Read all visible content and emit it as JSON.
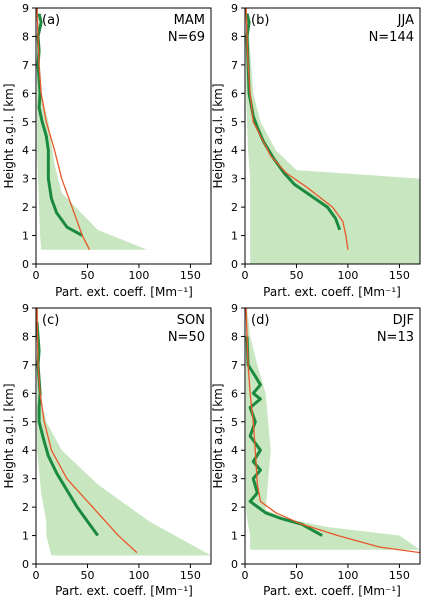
{
  "chart_data": [
    {
      "type": "line",
      "panel": "(a)",
      "season": "MAM",
      "count": "N=69",
      "xlabel": "Part. ext. coeff. [Mm⁻¹]",
      "ylabel": "Height a.g.l. [km]",
      "xlim": [
        0,
        170
      ],
      "ylim": [
        0,
        9
      ],
      "xticks": [
        0,
        50,
        100,
        150
      ],
      "yticks": [
        0,
        1,
        2,
        3,
        4,
        5,
        6,
        7,
        8,
        9
      ],
      "band_lower": [
        [
          5,
          0.5
        ],
        [
          4,
          1
        ],
        [
          3,
          2
        ],
        [
          2,
          3
        ],
        [
          1,
          4
        ],
        [
          1,
          5
        ],
        [
          1,
          9
        ]
      ],
      "band_upper": [
        [
          108,
          0.5
        ],
        [
          60,
          1.2
        ],
        [
          25,
          2.5
        ],
        [
          18,
          3.5
        ],
        [
          12,
          5
        ],
        [
          5,
          6
        ],
        [
          2,
          9
        ]
      ],
      "mean_profile": [
        [
          52,
          0.5
        ],
        [
          45,
          1
        ],
        [
          35,
          2
        ],
        [
          25,
          3
        ],
        [
          18,
          4
        ],
        [
          10,
          5
        ],
        [
          5,
          6
        ],
        [
          3,
          7
        ],
        [
          2,
          8
        ],
        [
          1,
          9
        ]
      ],
      "median_profile": [
        [
          45,
          1
        ],
        [
          30,
          1.3
        ],
        [
          20,
          1.8
        ],
        [
          15,
          2.3
        ],
        [
          12,
          3
        ],
        [
          12,
          3.5
        ],
        [
          12,
          4
        ],
        [
          10,
          4.5
        ],
        [
          6,
          5
        ],
        [
          3,
          5.5
        ],
        [
          4,
          6
        ],
        [
          2,
          7
        ],
        [
          3,
          7.5
        ],
        [
          2,
          8
        ],
        [
          5,
          8.5
        ],
        [
          3,
          8.8
        ]
      ]
    },
    {
      "type": "line",
      "panel": "(b)",
      "season": "JJA",
      "count": "N=144",
      "xlabel": "Part. ext. coeff. [Mm⁻¹]",
      "ylabel": "Height a.g.l. [km]",
      "xlim": [
        0,
        170
      ],
      "ylim": [
        0,
        9
      ],
      "xticks": [
        0,
        50,
        100,
        150
      ],
      "yticks": [
        0,
        1,
        2,
        3,
        4,
        5,
        6,
        7,
        8,
        9
      ],
      "band_lower": [
        [
          5,
          0
        ],
        [
          5,
          1
        ],
        [
          5,
          2
        ],
        [
          5,
          3
        ],
        [
          3,
          4
        ],
        [
          2,
          5
        ],
        [
          1,
          6
        ],
        [
          1,
          9
        ]
      ],
      "band_upper": [
        [
          170,
          0
        ],
        [
          170,
          2.5
        ],
        [
          170,
          3
        ],
        [
          50,
          3.3
        ],
        [
          30,
          4
        ],
        [
          15,
          5
        ],
        [
          8,
          6
        ],
        [
          4,
          8
        ],
        [
          2,
          9
        ]
      ],
      "mean_profile": [
        [
          100,
          0.5
        ],
        [
          98,
          1
        ],
        [
          95,
          1.5
        ],
        [
          85,
          2
        ],
        [
          60,
          2.7
        ],
        [
          40,
          3.2
        ],
        [
          25,
          3.8
        ],
        [
          15,
          4.5
        ],
        [
          8,
          5
        ],
        [
          5,
          6
        ],
        [
          3,
          7
        ],
        [
          2,
          8
        ],
        [
          1,
          9
        ]
      ],
      "median_profile": [
        [
          92,
          1.2
        ],
        [
          88,
          1.6
        ],
        [
          80,
          2
        ],
        [
          60,
          2.5
        ],
        [
          48,
          2.8
        ],
        [
          38,
          3.2
        ],
        [
          28,
          3.7
        ],
        [
          18,
          4.3
        ],
        [
          12,
          4.8
        ],
        [
          8,
          5.2
        ],
        [
          4,
          6
        ],
        [
          3,
          7
        ],
        [
          2,
          8
        ],
        [
          4,
          8.5
        ],
        [
          2,
          8.8
        ]
      ]
    },
    {
      "type": "line",
      "panel": "(c)",
      "season": "SON",
      "count": "N=50",
      "xlabel": "Part. ext. coeff. [Mm⁻¹]",
      "ylabel": "Height a.g.l. [km]",
      "xlim": [
        0,
        170
      ],
      "ylim": [
        0,
        9
      ],
      "xticks": [
        0,
        50,
        100,
        150
      ],
      "yticks": [
        0,
        1,
        2,
        3,
        4,
        5,
        6,
        7,
        8,
        9
      ],
      "band_lower": [
        [
          15,
          0.3
        ],
        [
          10,
          1
        ],
        [
          10,
          1.5
        ],
        [
          5,
          2.5
        ],
        [
          1,
          4
        ],
        [
          1,
          9
        ]
      ],
      "band_upper": [
        [
          170,
          0.3
        ],
        [
          110,
          1.5
        ],
        [
          60,
          2.8
        ],
        [
          25,
          4
        ],
        [
          10,
          5
        ],
        [
          3,
          6
        ],
        [
          2,
          9
        ]
      ],
      "mean_profile": [
        [
          98,
          0.4
        ],
        [
          80,
          1
        ],
        [
          55,
          2
        ],
        [
          30,
          3
        ],
        [
          15,
          4
        ],
        [
          8,
          5
        ],
        [
          4,
          6
        ],
        [
          2,
          7
        ],
        [
          1,
          9
        ]
      ],
      "median_profile": [
        [
          60,
          1
        ],
        [
          50,
          1.5
        ],
        [
          40,
          2
        ],
        [
          30,
          2.6
        ],
        [
          20,
          3.2
        ],
        [
          12,
          3.8
        ],
        [
          8,
          4.3
        ],
        [
          3,
          5
        ],
        [
          3,
          5.5
        ],
        [
          4,
          6
        ],
        [
          2,
          7
        ],
        [
          3,
          7.5
        ],
        [
          2,
          8
        ],
        [
          1,
          8.5
        ]
      ]
    },
    {
      "type": "line",
      "panel": "(d)",
      "season": "DJF",
      "count": "N=13",
      "xlabel": "Part. ext. coeff. [Mm⁻¹]",
      "ylabel": "Height a.g.l. [km]",
      "xlim": [
        0,
        170
      ],
      "ylim": [
        0,
        9
      ],
      "xticks": [
        0,
        50,
        100,
        150
      ],
      "yticks": [
        0,
        1,
        2,
        3,
        4,
        5,
        6,
        7,
        8,
        9
      ],
      "band_lower": [
        [
          5,
          0.5
        ],
        [
          5,
          1
        ],
        [
          2,
          1.6
        ],
        [
          1,
          2
        ],
        [
          1,
          9
        ]
      ],
      "band_upper": [
        [
          170,
          0.5
        ],
        [
          150,
          1
        ],
        [
          80,
          1.3
        ],
        [
          40,
          1.6
        ],
        [
          20,
          1.9
        ],
        [
          25,
          4
        ],
        [
          20,
          6
        ],
        [
          12,
          7
        ],
        [
          5,
          8
        ],
        [
          2,
          9
        ]
      ],
      "mean_profile": [
        [
          170,
          0.4
        ],
        [
          130,
          0.6
        ],
        [
          90,
          1
        ],
        [
          55,
          1.4
        ],
        [
          30,
          1.8
        ],
        [
          15,
          2.2
        ],
        [
          12,
          2.8
        ],
        [
          10,
          4
        ],
        [
          8,
          5
        ],
        [
          5,
          6
        ],
        [
          3,
          7
        ],
        [
          2,
          8
        ],
        [
          1,
          9
        ]
      ],
      "median_profile": [
        [
          75,
          1
        ],
        [
          55,
          1.4
        ],
        [
          35,
          1.6
        ],
        [
          20,
          1.8
        ],
        [
          5,
          2.2
        ],
        [
          12,
          2.5
        ],
        [
          8,
          3
        ],
        [
          15,
          3.3
        ],
        [
          8,
          3.6
        ],
        [
          15,
          4
        ],
        [
          5,
          4.5
        ],
        [
          10,
          5
        ],
        [
          5,
          5.5
        ],
        [
          15,
          5.8
        ],
        [
          8,
          6
        ],
        [
          15,
          6.3
        ],
        [
          10,
          6.6
        ],
        [
          3,
          7
        ],
        [
          2,
          8
        ]
      ]
    }
  ]
}
